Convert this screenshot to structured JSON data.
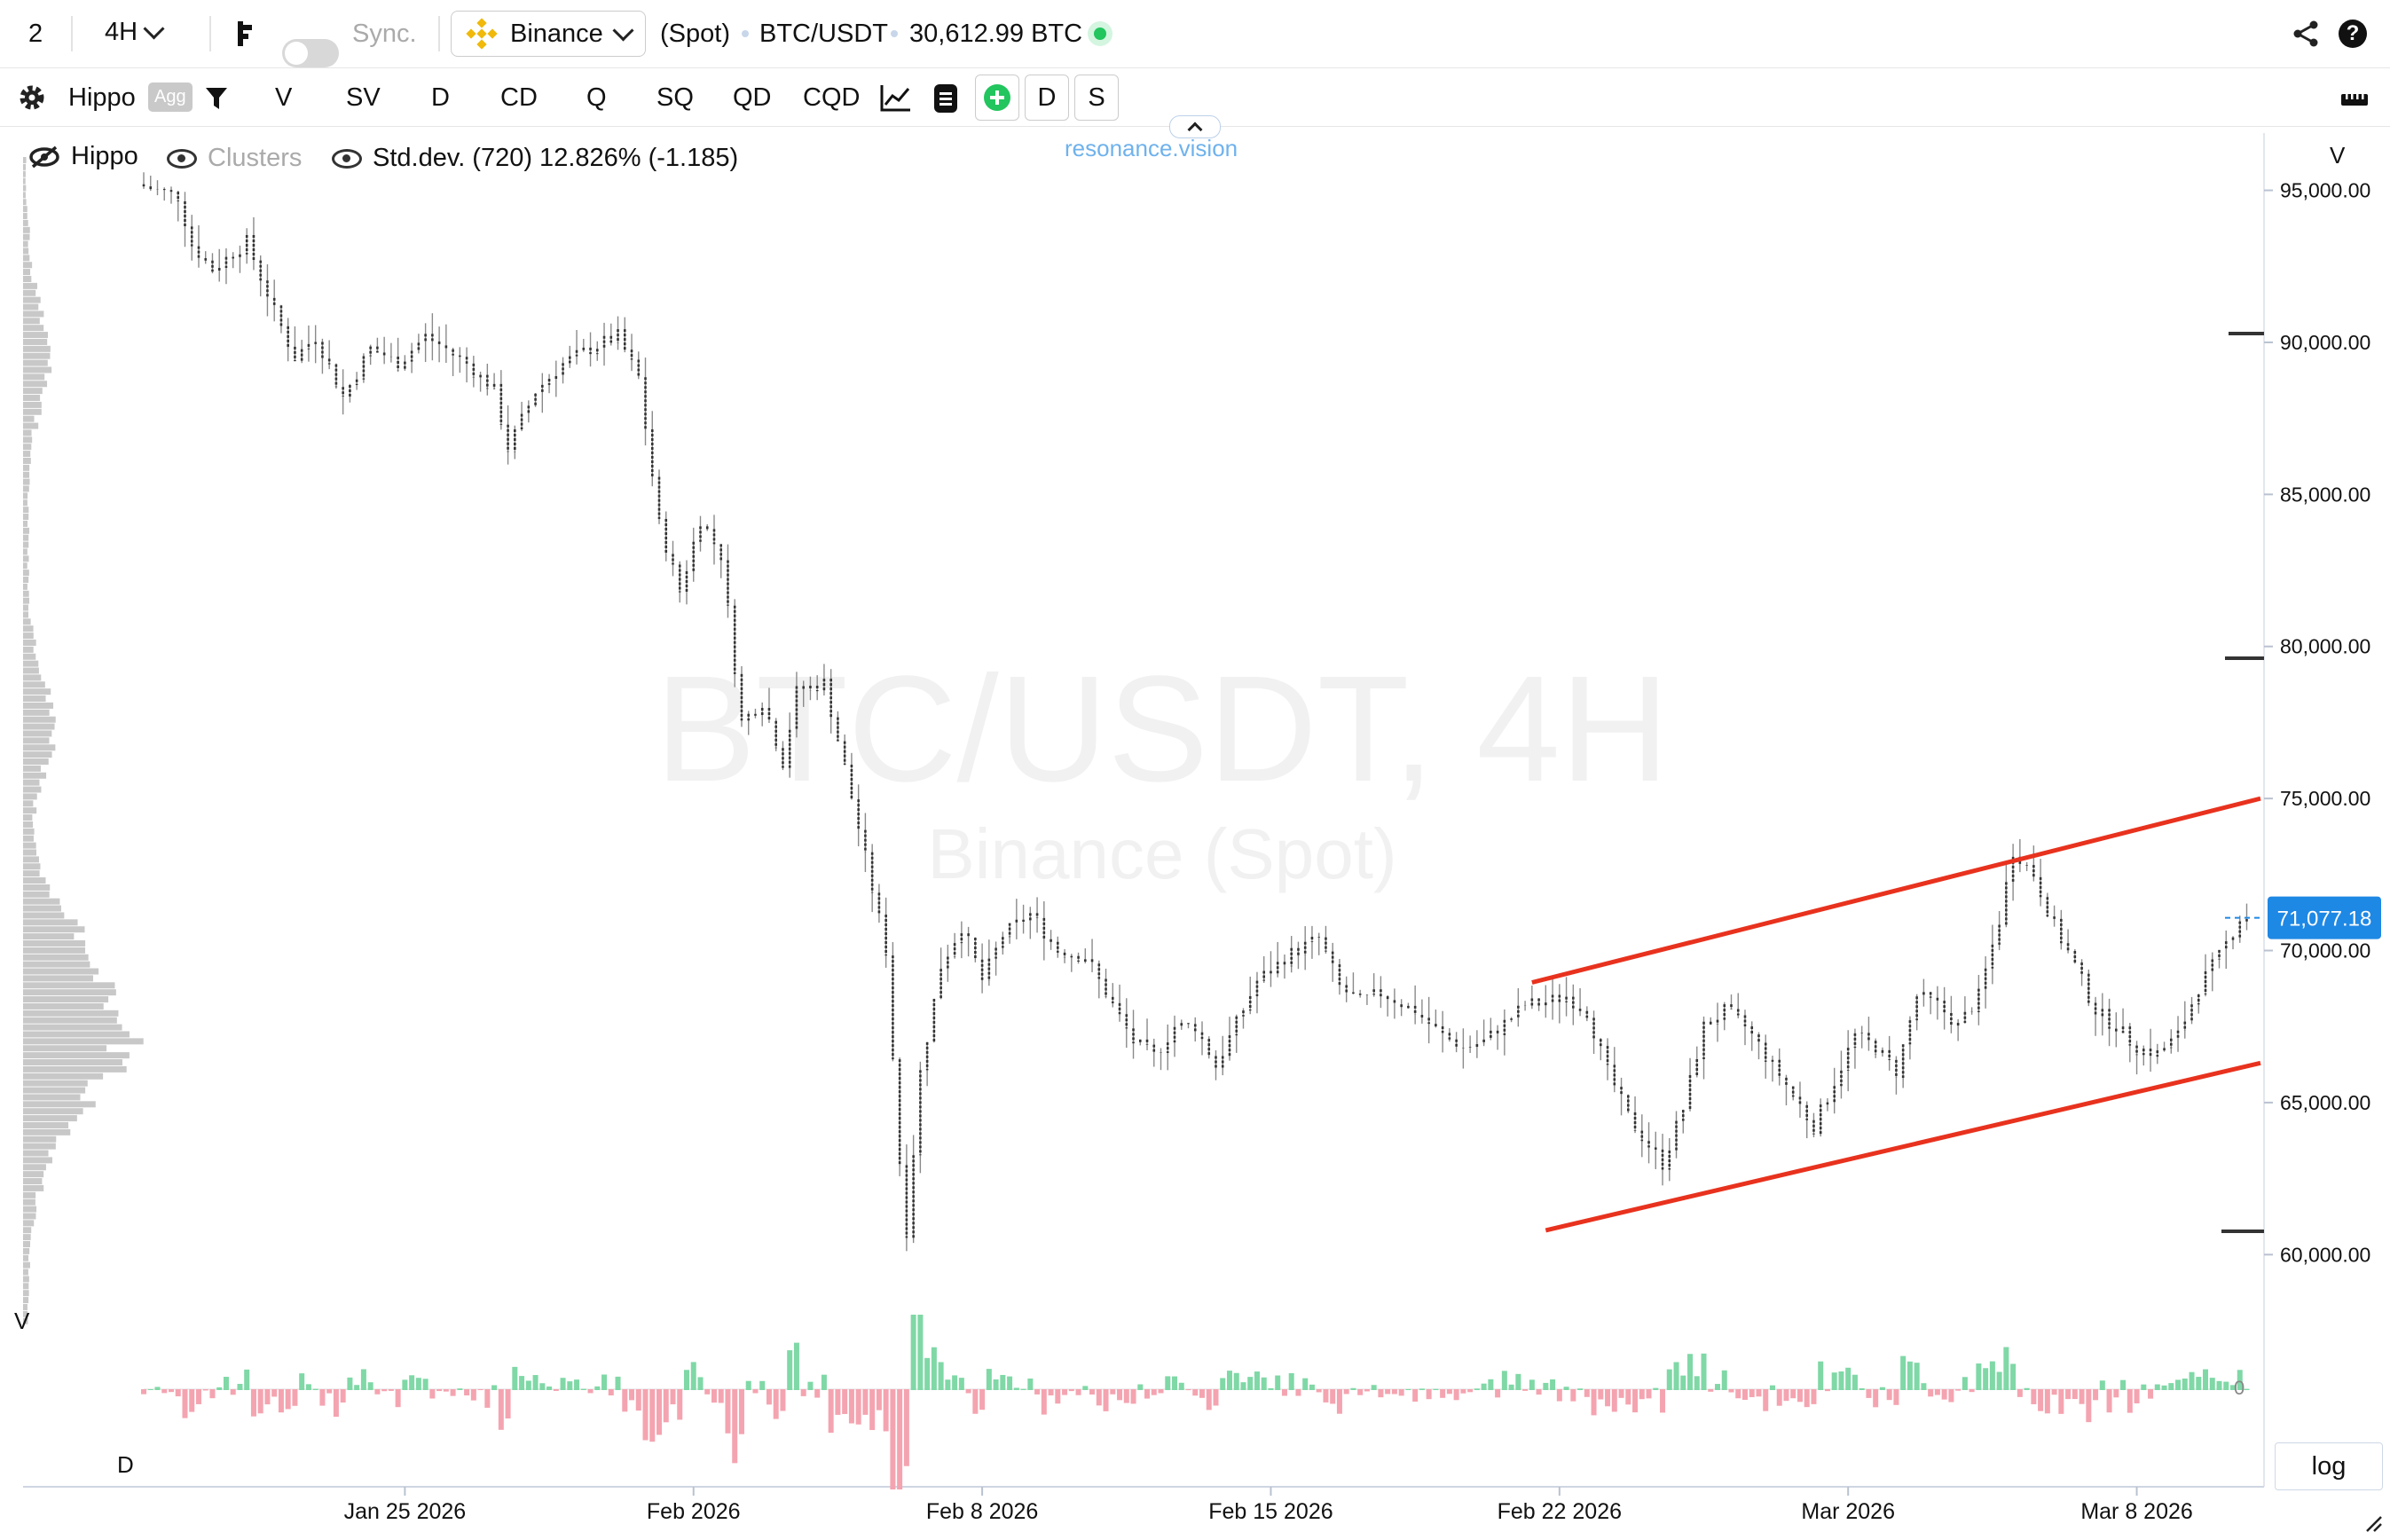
{
  "toolbar_top": {
    "layout_count": "2",
    "timeframe": "4H",
    "sync_label": "Sync.",
    "exchange": "Binance",
    "market": "(Spot)",
    "pair": "BTC/USDT",
    "balance": "30,612.99 BTC"
  },
  "toolbar_indicators": {
    "profile_name": "Hippo",
    "agg_badge": "Agg",
    "items": [
      "V",
      "SV",
      "D",
      "CD",
      "Q",
      "SQ",
      "QD",
      "CQD"
    ],
    "btn_d": "D",
    "btn_s": "S"
  },
  "legend": {
    "hippo": "Hippo",
    "clusters": "Clusters",
    "stddev": "Std.dev. (720) 12.826% (-1.185)"
  },
  "watermark": {
    "site": "resonance.vision",
    "title": "BTC/USDT, 4H",
    "subtitle": "Binance (Spot)"
  },
  "pane_labels": {
    "volume_profile": "V",
    "price_axis_header": "V",
    "delta": "D",
    "delta_zero": "0",
    "log": "log"
  },
  "colors": {
    "candle": "#333333",
    "channel": "#e8321e",
    "delta_pos": "#7fd8a6",
    "delta_neg": "#f4a4b0",
    "accent": "#1e88e5",
    "profile": "#c8c8c8"
  },
  "chart_data": {
    "type": "ohlc",
    "y_scale": "linear",
    "ylim": [
      57500,
      97000
    ],
    "yticks": [
      {
        "value": 95000,
        "label": "95,000.00"
      },
      {
        "value": 90000,
        "label": "90,000.00"
      },
      {
        "value": 85000,
        "label": "85,000.00"
      },
      {
        "value": 80000,
        "label": "80,000.00"
      },
      {
        "value": 75000,
        "label": "75,000.00"
      },
      {
        "value": 70000,
        "label": "70,000.00"
      },
      {
        "value": 65000,
        "label": "65,000.00"
      },
      {
        "value": 60000,
        "label": "60,000.00"
      }
    ],
    "x_start": "2026-01-18T16:00",
    "x_end": "2026-03-11T00:00",
    "xticks": [
      {
        "date": "2026-01-25",
        "label": "Jan 25 2026"
      },
      {
        "date": "2026-02-01",
        "label": "Feb 2026"
      },
      {
        "date": "2026-02-08",
        "label": "Feb 8 2026"
      },
      {
        "date": "2026-02-15",
        "label": "Feb 15 2026"
      },
      {
        "date": "2026-02-22",
        "label": "Feb 22 2026"
      },
      {
        "date": "2026-03-01",
        "label": "Mar 2026"
      },
      {
        "date": "2026-03-08",
        "label": "Mar 8 2026"
      }
    ],
    "last_price": 71077.18,
    "last_price_label": "71,077.18",
    "price_path": [
      [
        "2026-01-18T16:00",
        95200
      ],
      [
        "2026-01-19T16:00",
        94800
      ],
      [
        "2026-01-20T00:00",
        93200
      ],
      [
        "2026-01-20T12:00",
        92400
      ],
      [
        "2026-01-21T08:00",
        93300
      ],
      [
        "2026-01-22T00:00",
        91000
      ],
      [
        "2026-01-22T12:00",
        89500
      ],
      [
        "2026-01-23T00:00",
        90200
      ],
      [
        "2026-01-23T16:00",
        88200
      ],
      [
        "2026-01-24T08:00",
        89800
      ],
      [
        "2026-01-25T00:00",
        89300
      ],
      [
        "2026-01-25T16:00",
        90200
      ],
      [
        "2026-01-26T08:00",
        89600
      ],
      [
        "2026-01-26T16:00",
        89300
      ],
      [
        "2026-01-27T08:00",
        88400
      ],
      [
        "2026-01-27T16:00",
        86500
      ],
      [
        "2026-01-28T08:00",
        88400
      ],
      [
        "2026-01-29T00:00",
        89300
      ],
      [
        "2026-01-29T16:00",
        89800
      ],
      [
        "2026-01-30T08:00",
        90200
      ],
      [
        "2026-01-30T20:00",
        88800
      ],
      [
        "2026-01-31T08:00",
        84000
      ],
      [
        "2026-01-31T20:00",
        81800
      ],
      [
        "2026-02-01T08:00",
        84200
      ],
      [
        "2026-02-01T20:00",
        83000
      ],
      [
        "2026-02-02T08:00",
        77500
      ],
      [
        "2026-02-02T20:00",
        78200
      ],
      [
        "2026-02-03T08:00",
        76200
      ],
      [
        "2026-02-03T16:00",
        78500
      ],
      [
        "2026-02-04T08:00",
        78800
      ],
      [
        "2026-02-04T20:00",
        76000
      ],
      [
        "2026-02-05T08:00",
        73000
      ],
      [
        "2026-02-05T20:00",
        70000
      ],
      [
        "2026-02-06T04:00",
        63000
      ],
      [
        "2026-02-06T08:00",
        60800
      ],
      [
        "2026-02-06T16:00",
        66000
      ],
      [
        "2026-02-07T04:00",
        69500
      ],
      [
        "2026-02-07T16:00",
        70800
      ],
      [
        "2026-02-08T04:00",
        69000
      ],
      [
        "2026-02-08T16:00",
        70500
      ],
      [
        "2026-02-09T08:00",
        71200
      ],
      [
        "2026-02-10T00:00",
        70000
      ],
      [
        "2026-02-10T16:00",
        69800
      ],
      [
        "2026-02-11T08:00",
        68200
      ],
      [
        "2026-02-11T20:00",
        67000
      ],
      [
        "2026-02-12T08:00",
        66500
      ],
      [
        "2026-02-12T20:00",
        67500
      ],
      [
        "2026-02-13T08:00",
        67500
      ],
      [
        "2026-02-13T20:00",
        66200
      ],
      [
        "2026-02-14T08:00",
        67600
      ],
      [
        "2026-02-14T20:00",
        69000
      ],
      [
        "2026-02-15T16:00",
        69900
      ],
      [
        "2026-02-16T08:00",
        70400
      ],
      [
        "2026-02-16T20:00",
        68800
      ],
      [
        "2026-02-17T08:00",
        68300
      ],
      [
        "2026-02-17T20:00",
        68600
      ],
      [
        "2026-02-18T16:00",
        68000
      ],
      [
        "2026-02-19T08:00",
        67200
      ],
      [
        "2026-02-19T20:00",
        66800
      ],
      [
        "2026-02-20T08:00",
        67000
      ],
      [
        "2026-02-20T20:00",
        67600
      ],
      [
        "2026-02-21T08:00",
        68200
      ],
      [
        "2026-02-21T20:00",
        68300
      ],
      [
        "2026-02-22T08:00",
        68500
      ],
      [
        "2026-02-22T20:00",
        68000
      ],
      [
        "2026-02-23T08:00",
        66000
      ],
      [
        "2026-02-23T20:00",
        64500
      ],
      [
        "2026-02-24T08:00",
        63600
      ],
      [
        "2026-02-24T16:00",
        63000
      ],
      [
        "2026-02-25T04:00",
        64800
      ],
      [
        "2026-02-25T16:00",
        67500
      ],
      [
        "2026-02-26T04:00",
        68000
      ],
      [
        "2026-02-26T16:00",
        67500
      ],
      [
        "2026-02-27T08:00",
        66200
      ],
      [
        "2026-02-27T20:00",
        65200
      ],
      [
        "2026-02-28T08:00",
        64200
      ],
      [
        "2026-02-28T20:00",
        65700
      ],
      [
        "2026-03-01T08:00",
        67200
      ],
      [
        "2026-03-01T20:00",
        66800
      ],
      [
        "2026-03-02T08:00",
        66000
      ],
      [
        "2026-03-02T20:00",
        68500
      ],
      [
        "2026-03-03T08:00",
        68200
      ],
      [
        "2026-03-03T20:00",
        67500
      ],
      [
        "2026-03-04T08:00",
        68500
      ],
      [
        "2026-03-04T20:00",
        71000
      ],
      [
        "2026-03-05T04:00",
        73300
      ],
      [
        "2026-03-05T16:00",
        72500
      ],
      [
        "2026-03-06T04:00",
        70800
      ],
      [
        "2026-03-06T16:00",
        69500
      ],
      [
        "2026-03-07T04:00",
        68000
      ],
      [
        "2026-03-07T16:00",
        67500
      ],
      [
        "2026-03-08T04:00",
        66800
      ],
      [
        "2026-03-08T16:00",
        66600
      ],
      [
        "2026-03-09T04:00",
        67200
      ],
      [
        "2026-03-09T16:00",
        68800
      ],
      [
        "2026-03-10T04:00",
        69800
      ],
      [
        "2026-03-10T16:00",
        71077
      ]
    ],
    "channel_lines": [
      {
        "from": [
          "2026-02-21T08:00",
          68950
        ],
        "to": [
          "2026-03-11T00:00",
          75000
        ]
      },
      {
        "from": [
          "2026-02-21T16:00",
          60800
        ],
        "to": [
          "2026-03-11T00:00",
          66300
        ]
      }
    ]
  }
}
